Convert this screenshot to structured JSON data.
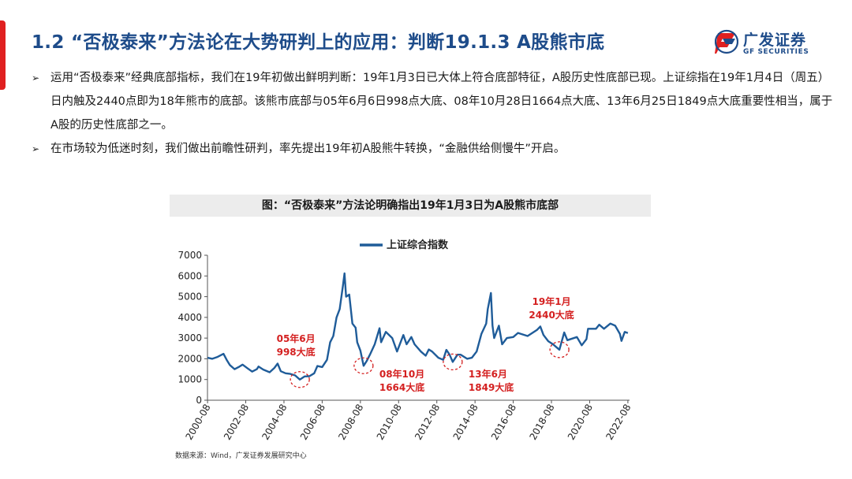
{
  "header": {
    "title": "1.2 “否极泰来”方法论在大势研判上的应用：判断19.1.3 A股熊市底",
    "logo_cn": "广发证券",
    "logo_en": "GF SECURITIES"
  },
  "bullets": [
    {
      "text": "运用“否极泰来”经典底部指标，我们在19年初做出鲜明判断：19年1月3日已大体上符合底部特征，A股历史性底部已现。上证综指在19年1月4日（周五）日内触及2440点即为18年熊市的底部。该熊市底部与05年6月6日998点大底、08年10月28日1664点大底、13年6月25日1849点大底重要性相当，属于A股的历史性底部之一。"
    },
    {
      "text": "在市场较为低迷时刻，我们做出前瞻性研判，率先提出19年初A股熊牛转换，“金融供给侧慢牛”开启。"
    }
  ],
  "chart_title": "图：“否极泰来”方法论明确指出19年1月3日为A股熊市底部",
  "source": "数据来源：Wind，广发证券发展研究中心",
  "colors": {
    "title": "#1e4c8a",
    "line": "#1f5c99",
    "annotation": "#d42020",
    "accent": "#e02020"
  },
  "chart_data": {
    "type": "line",
    "title": "",
    "xlabel": "",
    "ylabel": "",
    "ylim": [
      0,
      7000
    ],
    "yticks": [
      0,
      1000,
      2000,
      3000,
      4000,
      5000,
      6000,
      7000
    ],
    "xlim": [
      2000.58,
      2022.67
    ],
    "xticks": [
      "2000-08",
      "2002-08",
      "2004-08",
      "2006-08",
      "2008-08",
      "2010-08",
      "2012-08",
      "2014-08",
      "2016-08",
      "2018-08",
      "2020-08",
      "2022-08"
    ],
    "legend": "top-center",
    "grid": false,
    "series": [
      {
        "name": "上证综合指数",
        "points": [
          [
            "2000-08",
            2050
          ],
          [
            "2000-11",
            2000
          ],
          [
            "2001-02",
            2080
          ],
          [
            "2001-06",
            2240
          ],
          [
            "2001-08",
            1950
          ],
          [
            "2001-10",
            1700
          ],
          [
            "2002-01",
            1500
          ],
          [
            "2002-04",
            1620
          ],
          [
            "2002-06",
            1720
          ],
          [
            "2002-09",
            1550
          ],
          [
            "2002-12",
            1380
          ],
          [
            "2003-03",
            1500
          ],
          [
            "2003-04",
            1630
          ],
          [
            "2003-07",
            1480
          ],
          [
            "2003-11",
            1350
          ],
          [
            "2004-02",
            1560
          ],
          [
            "2004-04",
            1770
          ],
          [
            "2004-06",
            1400
          ],
          [
            "2004-09",
            1300
          ],
          [
            "2004-12",
            1270
          ],
          [
            "2005-03",
            1200
          ],
          [
            "2005-06",
            998
          ],
          [
            "2005-09",
            1150
          ],
          [
            "2005-12",
            1160
          ],
          [
            "2006-03",
            1300
          ],
          [
            "2006-05",
            1650
          ],
          [
            "2006-08",
            1600
          ],
          [
            "2006-11",
            1950
          ],
          [
            "2007-01",
            2800
          ],
          [
            "2007-03",
            3100
          ],
          [
            "2007-05",
            4000
          ],
          [
            "2007-07",
            4400
          ],
          [
            "2007-09",
            5500
          ],
          [
            "2007-10",
            6124
          ],
          [
            "2007-11",
            5000
          ],
          [
            "2008-01",
            5100
          ],
          [
            "2008-03",
            3700
          ],
          [
            "2008-05",
            3500
          ],
          [
            "2008-06",
            2800
          ],
          [
            "2008-08",
            2400
          ],
          [
            "2008-10",
            1664
          ],
          [
            "2008-12",
            1900
          ],
          [
            "2009-02",
            2200
          ],
          [
            "2009-05",
            2700
          ],
          [
            "2009-08",
            3478
          ],
          [
            "2009-09",
            2800
          ],
          [
            "2009-12",
            3300
          ],
          [
            "2010-04",
            3000
          ],
          [
            "2010-07",
            2350
          ],
          [
            "2010-11",
            3150
          ],
          [
            "2011-01",
            2700
          ],
          [
            "2011-04",
            3050
          ],
          [
            "2011-06",
            2700
          ],
          [
            "2011-10",
            2350
          ],
          [
            "2012-01",
            2150
          ],
          [
            "2012-03",
            2450
          ],
          [
            "2012-05",
            2350
          ],
          [
            "2012-09",
            2050
          ],
          [
            "2012-12",
            1950
          ],
          [
            "2013-02",
            2430
          ],
          [
            "2013-04",
            2200
          ],
          [
            "2013-06",
            1849
          ],
          [
            "2013-09",
            2200
          ],
          [
            "2013-11",
            2200
          ],
          [
            "2014-03",
            2000
          ],
          [
            "2014-06",
            2050
          ],
          [
            "2014-09",
            2350
          ],
          [
            "2014-12",
            3200
          ],
          [
            "2015-03",
            3700
          ],
          [
            "2015-04",
            4400
          ],
          [
            "2015-06",
            5178
          ],
          [
            "2015-07",
            3600
          ],
          [
            "2015-08",
            3000
          ],
          [
            "2015-11",
            3600
          ],
          [
            "2016-01",
            2700
          ],
          [
            "2016-04",
            3000
          ],
          [
            "2016-08",
            3050
          ],
          [
            "2016-11",
            3250
          ],
          [
            "2017-05",
            3100
          ],
          [
            "2017-11",
            3400
          ],
          [
            "2018-01",
            3560
          ],
          [
            "2018-03",
            3150
          ],
          [
            "2018-06",
            2850
          ],
          [
            "2018-09",
            2700
          ],
          [
            "2019-01",
            2440
          ],
          [
            "2019-04",
            3270
          ],
          [
            "2019-06",
            2900
          ],
          [
            "2019-12",
            3050
          ],
          [
            "2020-03",
            2650
          ],
          [
            "2020-06",
            2950
          ],
          [
            "2020-07",
            3450
          ],
          [
            "2020-12",
            3450
          ],
          [
            "2021-02",
            3650
          ],
          [
            "2021-05",
            3450
          ],
          [
            "2021-09",
            3700
          ],
          [
            "2021-12",
            3600
          ],
          [
            "2022-03",
            3200
          ],
          [
            "2022-04",
            2863
          ],
          [
            "2022-06",
            3300
          ],
          [
            "2022-08",
            3240
          ]
        ]
      }
    ],
    "annotations": [
      {
        "lines": [
          "05年6月",
          "998大底"
        ],
        "at": "2005-06",
        "value": 998
      },
      {
        "lines": [
          "08年10月",
          "1664大底"
        ],
        "at": "2008-10",
        "value": 1664
      },
      {
        "lines": [
          "13年6月",
          "1849大底"
        ],
        "at": "2013-06",
        "value": 1849
      },
      {
        "lines": [
          "19年1月",
          "2440大底"
        ],
        "at": "2019-01",
        "value": 2440
      }
    ]
  }
}
